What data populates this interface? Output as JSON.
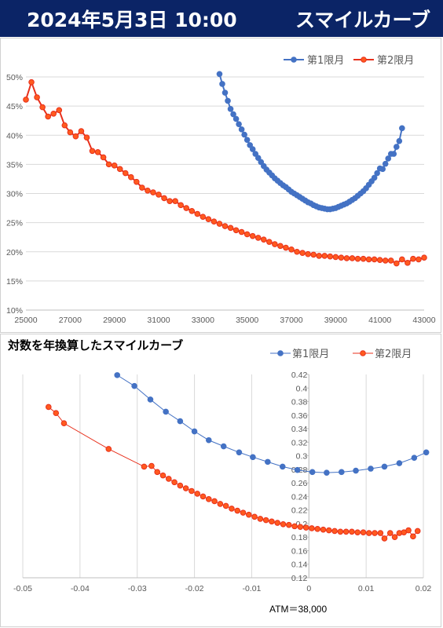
{
  "header": {
    "date": "2024年5月3日 10:00",
    "title": "スマイルカーブ"
  },
  "colors": {
    "header_bg": "#0b2466",
    "series1": "#4472c4",
    "series2": "#e8301c",
    "series2_fill": "#ff5a1f"
  },
  "chart_data": [
    {
      "type": "line",
      "title": "",
      "xlim": [
        25000,
        43000
      ],
      "ylim": [
        0.1,
        0.5
      ],
      "x_ticks": [
        "25000",
        "27000",
        "29000",
        "31000",
        "33000",
        "35000",
        "37000",
        "39000",
        "41000",
        "43000"
      ],
      "y_ticks": [
        "10%",
        "15%",
        "20%",
        "25%",
        "30%",
        "35%",
        "40%",
        "45%",
        "50%"
      ],
      "grid": "horizontal",
      "legend": "top-right",
      "series": [
        {
          "name": "第1限月",
          "x": [
            33750,
            33875,
            34000,
            34125,
            34250,
            34375,
            34500,
            34625,
            34750,
            34875,
            35000,
            35125,
            35250,
            35375,
            35500,
            35625,
            35750,
            35875,
            36000,
            36125,
            36250,
            36375,
            36500,
            36625,
            36750,
            36875,
            37000,
            37125,
            37250,
            37375,
            37500,
            37625,
            37750,
            37875,
            38000,
            38125,
            38250,
            38375,
            38500,
            38625,
            38750,
            38875,
            39000,
            39125,
            39250,
            39375,
            39500,
            39625,
            39750,
            39875,
            40000,
            40125,
            40250,
            40375,
            40500,
            40625,
            40750,
            40875,
            41000,
            41125,
            41250,
            41375,
            41500,
            41625,
            41750,
            41875,
            42000
          ],
          "values": [
            0.505,
            0.488,
            0.473,
            0.459,
            0.445,
            0.436,
            0.428,
            0.419,
            0.41,
            0.401,
            0.392,
            0.383,
            0.376,
            0.368,
            0.361,
            0.354,
            0.347,
            0.341,
            0.336,
            0.331,
            0.326,
            0.322,
            0.318,
            0.314,
            0.311,
            0.307,
            0.303,
            0.3,
            0.297,
            0.294,
            0.291,
            0.288,
            0.285,
            0.283,
            0.28,
            0.278,
            0.276,
            0.275,
            0.274,
            0.273,
            0.273,
            0.274,
            0.275,
            0.277,
            0.279,
            0.281,
            0.283,
            0.286,
            0.289,
            0.292,
            0.296,
            0.3,
            0.304,
            0.309,
            0.315,
            0.321,
            0.327,
            0.335,
            0.343,
            0.342,
            0.351,
            0.36,
            0.368,
            0.368,
            0.38,
            0.39,
            0.412
          ]
        },
        {
          "name": "第2限月",
          "x": [
            25000,
            25250,
            25500,
            25750,
            26000,
            26250,
            26500,
            26750,
            27000,
            27250,
            27500,
            27750,
            28000,
            28250,
            28500,
            28750,
            29000,
            29250,
            29500,
            29750,
            30000,
            30250,
            30500,
            30750,
            31000,
            31250,
            31500,
            31750,
            32000,
            32250,
            32500,
            32750,
            33000,
            33250,
            33500,
            33750,
            34000,
            34250,
            34500,
            34750,
            35000,
            35250,
            35500,
            35750,
            36000,
            36250,
            36500,
            36750,
            37000,
            37250,
            37500,
            37750,
            38000,
            38250,
            38500,
            38750,
            39000,
            39250,
            39500,
            39750,
            40000,
            40250,
            40500,
            40750,
            41000,
            41250,
            41500,
            41750,
            42000,
            42250,
            42500,
            42750,
            43000
          ],
          "values": [
            0.461,
            0.491,
            0.465,
            0.448,
            0.432,
            0.437,
            0.443,
            0.417,
            0.405,
            0.398,
            0.407,
            0.396,
            0.373,
            0.371,
            0.362,
            0.35,
            0.348,
            0.342,
            0.335,
            0.328,
            0.32,
            0.31,
            0.305,
            0.302,
            0.298,
            0.292,
            0.287,
            0.287,
            0.28,
            0.275,
            0.27,
            0.265,
            0.26,
            0.256,
            0.252,
            0.248,
            0.244,
            0.241,
            0.237,
            0.234,
            0.23,
            0.227,
            0.224,
            0.221,
            0.217,
            0.213,
            0.21,
            0.207,
            0.204,
            0.2,
            0.198,
            0.196,
            0.195,
            0.193,
            0.193,
            0.192,
            0.191,
            0.19,
            0.189,
            0.189,
            0.188,
            0.188,
            0.187,
            0.187,
            0.186,
            0.185,
            0.185,
            0.18,
            0.187,
            0.181,
            0.188,
            0.187,
            0.19
          ]
        }
      ]
    },
    {
      "type": "line",
      "title": "対数を年換算したスマイルカーブ",
      "xlim": [
        -0.05,
        0.02
      ],
      "ylim": [
        0.12,
        0.42
      ],
      "x_ticks": [
        "-0.05",
        "-0.04",
        "-0.03",
        "-0.02",
        "-0.01",
        "0",
        "0.01",
        "0.02"
      ],
      "y_ticks": [
        "0.12",
        "0.14",
        "0.16",
        "0.18",
        "0.2",
        "0.22",
        "0.24",
        "0.26",
        "0.28",
        "0.3",
        "0.32",
        "0.34",
        "0.36",
        "0.38",
        "0.4",
        "0.42"
      ],
      "grid": "vertical",
      "legend": "top-right",
      "annotation": "ATM＝38,000",
      "series": [
        {
          "name": "第1限月",
          "x": [
            -0.0335,
            -0.0305,
            -0.0277,
            -0.025,
            -0.0225,
            -0.02,
            -0.0175,
            -0.0149,
            -0.0122,
            -0.0098,
            -0.0072,
            -0.0046,
            -0.002,
            0.0006,
            0.0031,
            0.0057,
            0.0082,
            0.0108,
            0.0132,
            0.0158,
            0.0184,
            0.0205
          ],
          "values": [
            0.419,
            0.403,
            0.383,
            0.365,
            0.351,
            0.336,
            0.323,
            0.314,
            0.305,
            0.298,
            0.291,
            0.284,
            0.279,
            0.276,
            0.275,
            0.276,
            0.278,
            0.281,
            0.284,
            0.289,
            0.297,
            0.305
          ]
        },
        {
          "name": "第2限月",
          "x": [
            -0.0455,
            -0.0442,
            -0.0428,
            -0.035,
            -0.0288,
            -0.0275,
            -0.0265,
            -0.0255,
            -0.0245,
            -0.0235,
            -0.0225,
            -0.0215,
            -0.0205,
            -0.0195,
            -0.0185,
            -0.0175,
            -0.0165,
            -0.0155,
            -0.0145,
            -0.0135,
            -0.0125,
            -0.0115,
            -0.0105,
            -0.0095,
            -0.0085,
            -0.0075,
            -0.0065,
            -0.0055,
            -0.0045,
            -0.0035,
            -0.0025,
            -0.0015,
            -0.0005,
            0.0005,
            0.0015,
            0.0025,
            0.0035,
            0.0045,
            0.0055,
            0.0065,
            0.0075,
            0.0085,
            0.0095,
            0.0105,
            0.0115,
            0.0125,
            0.0132,
            0.0142,
            0.015,
            0.0158,
            0.0166,
            0.0174,
            0.0182,
            0.019
          ],
          "values": [
            0.372,
            0.363,
            0.348,
            0.31,
            0.284,
            0.285,
            0.276,
            0.271,
            0.266,
            0.261,
            0.256,
            0.252,
            0.248,
            0.244,
            0.24,
            0.236,
            0.233,
            0.229,
            0.226,
            0.222,
            0.219,
            0.216,
            0.213,
            0.21,
            0.207,
            0.205,
            0.203,
            0.201,
            0.199,
            0.198,
            0.196,
            0.195,
            0.194,
            0.193,
            0.192,
            0.191,
            0.19,
            0.189,
            0.188,
            0.188,
            0.188,
            0.187,
            0.187,
            0.186,
            0.186,
            0.186,
            0.178,
            0.186,
            0.18,
            0.186,
            0.187,
            0.19,
            0.181,
            0.189
          ]
        }
      ]
    }
  ]
}
